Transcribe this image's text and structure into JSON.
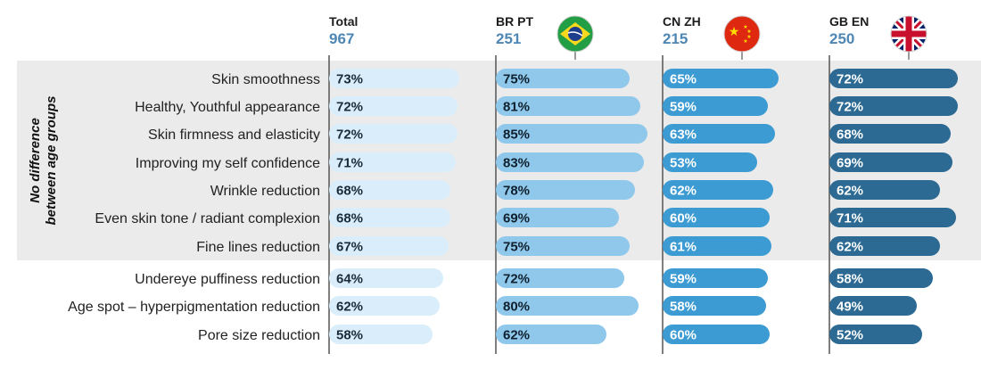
{
  "chart_data": {
    "type": "bar",
    "title": "",
    "group_label": [
      "No difference",
      "between age groups"
    ],
    "categories": [
      "Skin smoothness",
      "Healthy, Youthful appearance",
      "Skin firmness and elasticity",
      "Improving my self confidence",
      "Wrinkle reduction",
      "Even skin tone / radiant complexion",
      "Fine lines reduction",
      "Undereye puffiness reduction",
      "Age spot – hyperpigmentation reduction",
      "Pore size reduction"
    ],
    "shaded_rows": 7,
    "value_suffix": "%",
    "xlim": [
      0,
      100
    ],
    "series": [
      {
        "name": "Total",
        "base": "967",
        "flag": "",
        "color": "#d9eefa",
        "label_color": "#1b2a38",
        "values": [
          73,
          72,
          72,
          71,
          68,
          68,
          67,
          64,
          62,
          58
        ]
      },
      {
        "name": "BR PT",
        "base": "251",
        "flag": "brazil-flag",
        "color": "#8fc8eb",
        "label_color": "#10202e",
        "values": [
          75,
          81,
          85,
          83,
          78,
          69,
          75,
          72,
          80,
          62
        ]
      },
      {
        "name": "CN ZH",
        "base": "215",
        "flag": "china-flag",
        "color": "#3d9bd3",
        "label_color": "#ffffff",
        "values": [
          65,
          59,
          63,
          53,
          62,
          60,
          61,
          59,
          58,
          60
        ]
      },
      {
        "name": "GB EN",
        "base": "250",
        "flag": "uk-flag",
        "color": "#2c6a93",
        "label_color": "#ffffff",
        "values": [
          72,
          72,
          68,
          69,
          62,
          71,
          62,
          58,
          49,
          52
        ]
      }
    ],
    "colors": {
      "header_number": "#4e86b4",
      "band": "#ebebeb",
      "divider": "#555555"
    }
  }
}
